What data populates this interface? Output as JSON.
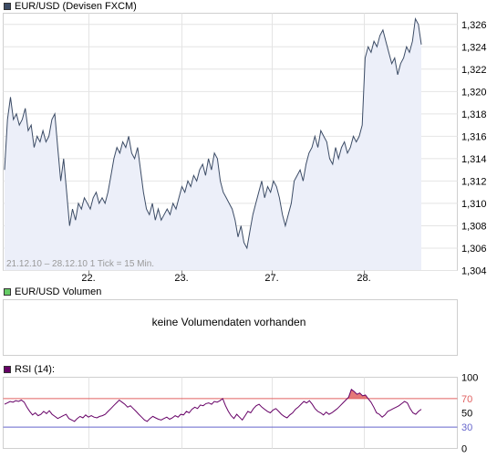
{
  "main_chart": {
    "legend": "EUR/USD (Devisen FXCM)",
    "legend_color": "#3c4c66",
    "info": "21.12.10 – 28.12.10    1 Tick = 15 Min."
  },
  "volume_chart": {
    "legend": "EUR/USD Volumen",
    "legend_color": "#66cc66",
    "message": "keine Volumendaten vorhanden"
  },
  "rsi_chart": {
    "legend": "RSI (14):",
    "legend_color": "#660066"
  },
  "chart_data": [
    {
      "type": "area",
      "title": "EUR/USD (Devisen FXCM)",
      "x_tick_labels": [
        "22.",
        "23.",
        "27.",
        "28."
      ],
      "y_tick_labels": [
        "1,326",
        "1,324",
        "1,322",
        "1,320",
        "1,318",
        "1,316",
        "1,314",
        "1,312",
        "1,310",
        "1,308",
        "1,306",
        "1,304"
      ],
      "ylim": [
        1.304,
        1.327
      ],
      "grid": true,
      "line_color": "#3c4c66",
      "fill_color": "#eceff9",
      "series": [
        {
          "values": [
            1.313,
            1.3175,
            1.3195,
            1.3175,
            1.318,
            1.317,
            1.3175,
            1.3185,
            1.3165,
            1.317,
            1.315,
            1.316,
            1.3155,
            1.3165,
            1.3155,
            1.316,
            1.3175,
            1.318,
            1.315,
            1.312,
            1.314,
            1.311,
            1.308,
            1.3095,
            1.3085,
            1.31,
            1.3095,
            1.3105,
            1.31,
            1.3095,
            1.3105,
            1.311,
            1.31,
            1.3105,
            1.31,
            1.311,
            1.3125,
            1.314,
            1.315,
            1.3145,
            1.3155,
            1.315,
            1.316,
            1.3145,
            1.314,
            1.315,
            1.313,
            1.311,
            1.3095,
            1.309,
            1.31,
            1.3085,
            1.3095,
            1.3085,
            1.309,
            1.3095,
            1.309,
            1.31,
            1.3095,
            1.3105,
            1.3115,
            1.311,
            1.312,
            1.3115,
            1.3125,
            1.312,
            1.313,
            1.3135,
            1.3125,
            1.314,
            1.313,
            1.3145,
            1.314,
            1.312,
            1.311,
            1.3105,
            1.31,
            1.3095,
            1.3085,
            1.307,
            1.308,
            1.3065,
            1.306,
            1.3075,
            1.309,
            1.31,
            1.311,
            1.312,
            1.3105,
            1.3115,
            1.311,
            1.312,
            1.3115,
            1.3105,
            1.309,
            1.308,
            1.309,
            1.31,
            1.312,
            1.3125,
            1.313,
            1.312,
            1.3135,
            1.3145,
            1.315,
            1.316,
            1.315,
            1.3165,
            1.316,
            1.3155,
            1.314,
            1.3135,
            1.315,
            1.314,
            1.315,
            1.3155,
            1.3145,
            1.315,
            1.316,
            1.3155,
            1.316,
            1.317,
            1.323,
            1.324,
            1.3235,
            1.3245,
            1.324,
            1.325,
            1.3255,
            1.3245,
            1.3235,
            1.3225,
            1.323,
            1.3215,
            1.3225,
            1.323,
            1.324,
            1.3235,
            1.3245,
            1.3265,
            1.326,
            1.3242
          ]
        }
      ]
    },
    {
      "type": "line",
      "title": "RSI (14):",
      "y_tick_labels": [
        "100",
        "70",
        "50",
        "30",
        "0"
      ],
      "ylim": [
        0,
        100
      ],
      "reference_lines": [
        70,
        30
      ],
      "overbought_fill_color": "#e06060",
      "line_color": "#660066",
      "series": [
        {
          "values": [
            62,
            64,
            66,
            65,
            67,
            66,
            68,
            65,
            58,
            52,
            47,
            50,
            46,
            48,
            52,
            49,
            53,
            48,
            45,
            42,
            44,
            46,
            48,
            42,
            40,
            38,
            42,
            45,
            43,
            47,
            44,
            46,
            44,
            43,
            45,
            46,
            48,
            52,
            56,
            60,
            64,
            68,
            65,
            62,
            58,
            60,
            56,
            52,
            48,
            44,
            40,
            38,
            42,
            45,
            43,
            41,
            40,
            42,
            44,
            41,
            43,
            46,
            44,
            48,
            47,
            52,
            50,
            55,
            58,
            56,
            61,
            60,
            63,
            64,
            62,
            66,
            65,
            67,
            70,
            60,
            52,
            46,
            42,
            48,
            44,
            40,
            46,
            52,
            50,
            56,
            60,
            62,
            58,
            55,
            52,
            50,
            54,
            56,
            52,
            48,
            45,
            43,
            47,
            50,
            55,
            58,
            62,
            66,
            64,
            67,
            62,
            56,
            52,
            50,
            47,
            51,
            48,
            50,
            53,
            56,
            60,
            64,
            68,
            72,
            83,
            80,
            76,
            78,
            74,
            75,
            70,
            65,
            58,
            50,
            48,
            44,
            47,
            52,
            54,
            56,
            58,
            60,
            63,
            66,
            64,
            56,
            50,
            48,
            52,
            55
          ]
        }
      ]
    }
  ]
}
